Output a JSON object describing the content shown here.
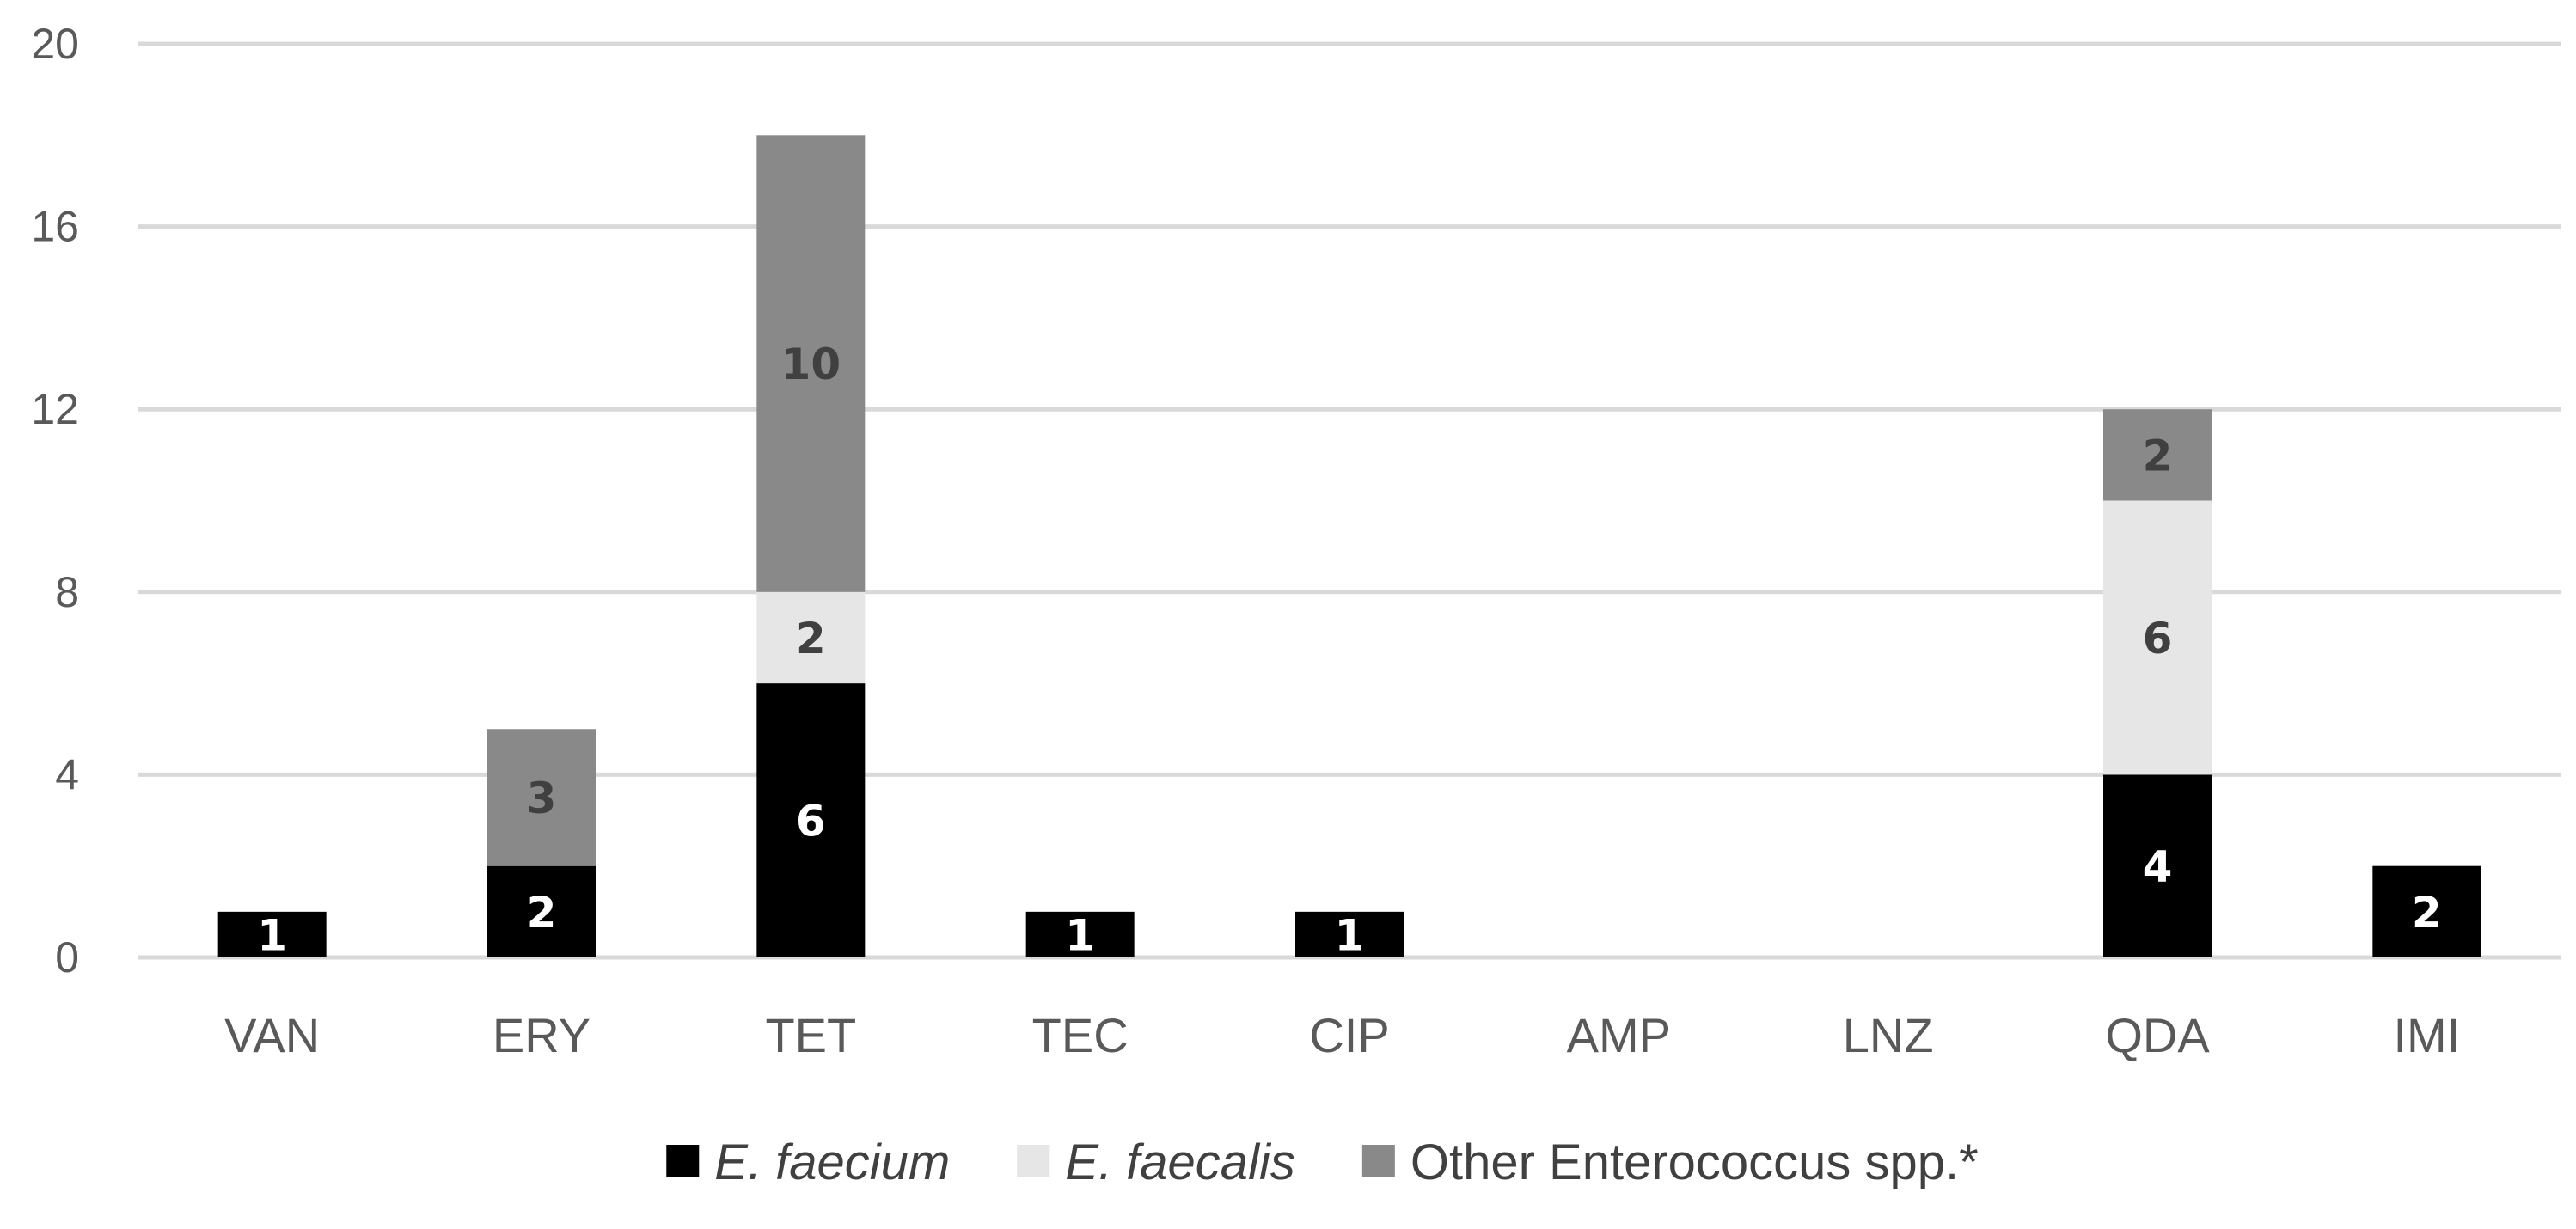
{
  "chart_data": {
    "type": "bar",
    "stacked": true,
    "categories": [
      "VAN",
      "ERY",
      "TET",
      "TEC",
      "CIP",
      "AMP",
      "LNZ",
      "QDA",
      "IMI"
    ],
    "series": [
      {
        "name": "E. faecium",
        "italic": true,
        "color": "#000000",
        "label_color": "#ffffff",
        "values": [
          1,
          2,
          6,
          1,
          1,
          0,
          0,
          4,
          2
        ]
      },
      {
        "name": "E. faecalis",
        "italic": true,
        "color": "#e6e6e6",
        "label_color": "#404040",
        "values": [
          0,
          0,
          2,
          0,
          0,
          0,
          0,
          6,
          0
        ]
      },
      {
        "name": "Other Enterococcus spp.*",
        "italic": false,
        "color": "#898989",
        "label_color": "#404040",
        "values": [
          0,
          3,
          10,
          0,
          0,
          0,
          0,
          2,
          0
        ]
      }
    ],
    "ylim": [
      0,
      20
    ],
    "yticks": [
      0,
      4,
      8,
      12,
      16,
      20
    ],
    "grid": true,
    "legend": "bottom-center",
    "title": "",
    "xlabel": "",
    "ylabel": ""
  }
}
